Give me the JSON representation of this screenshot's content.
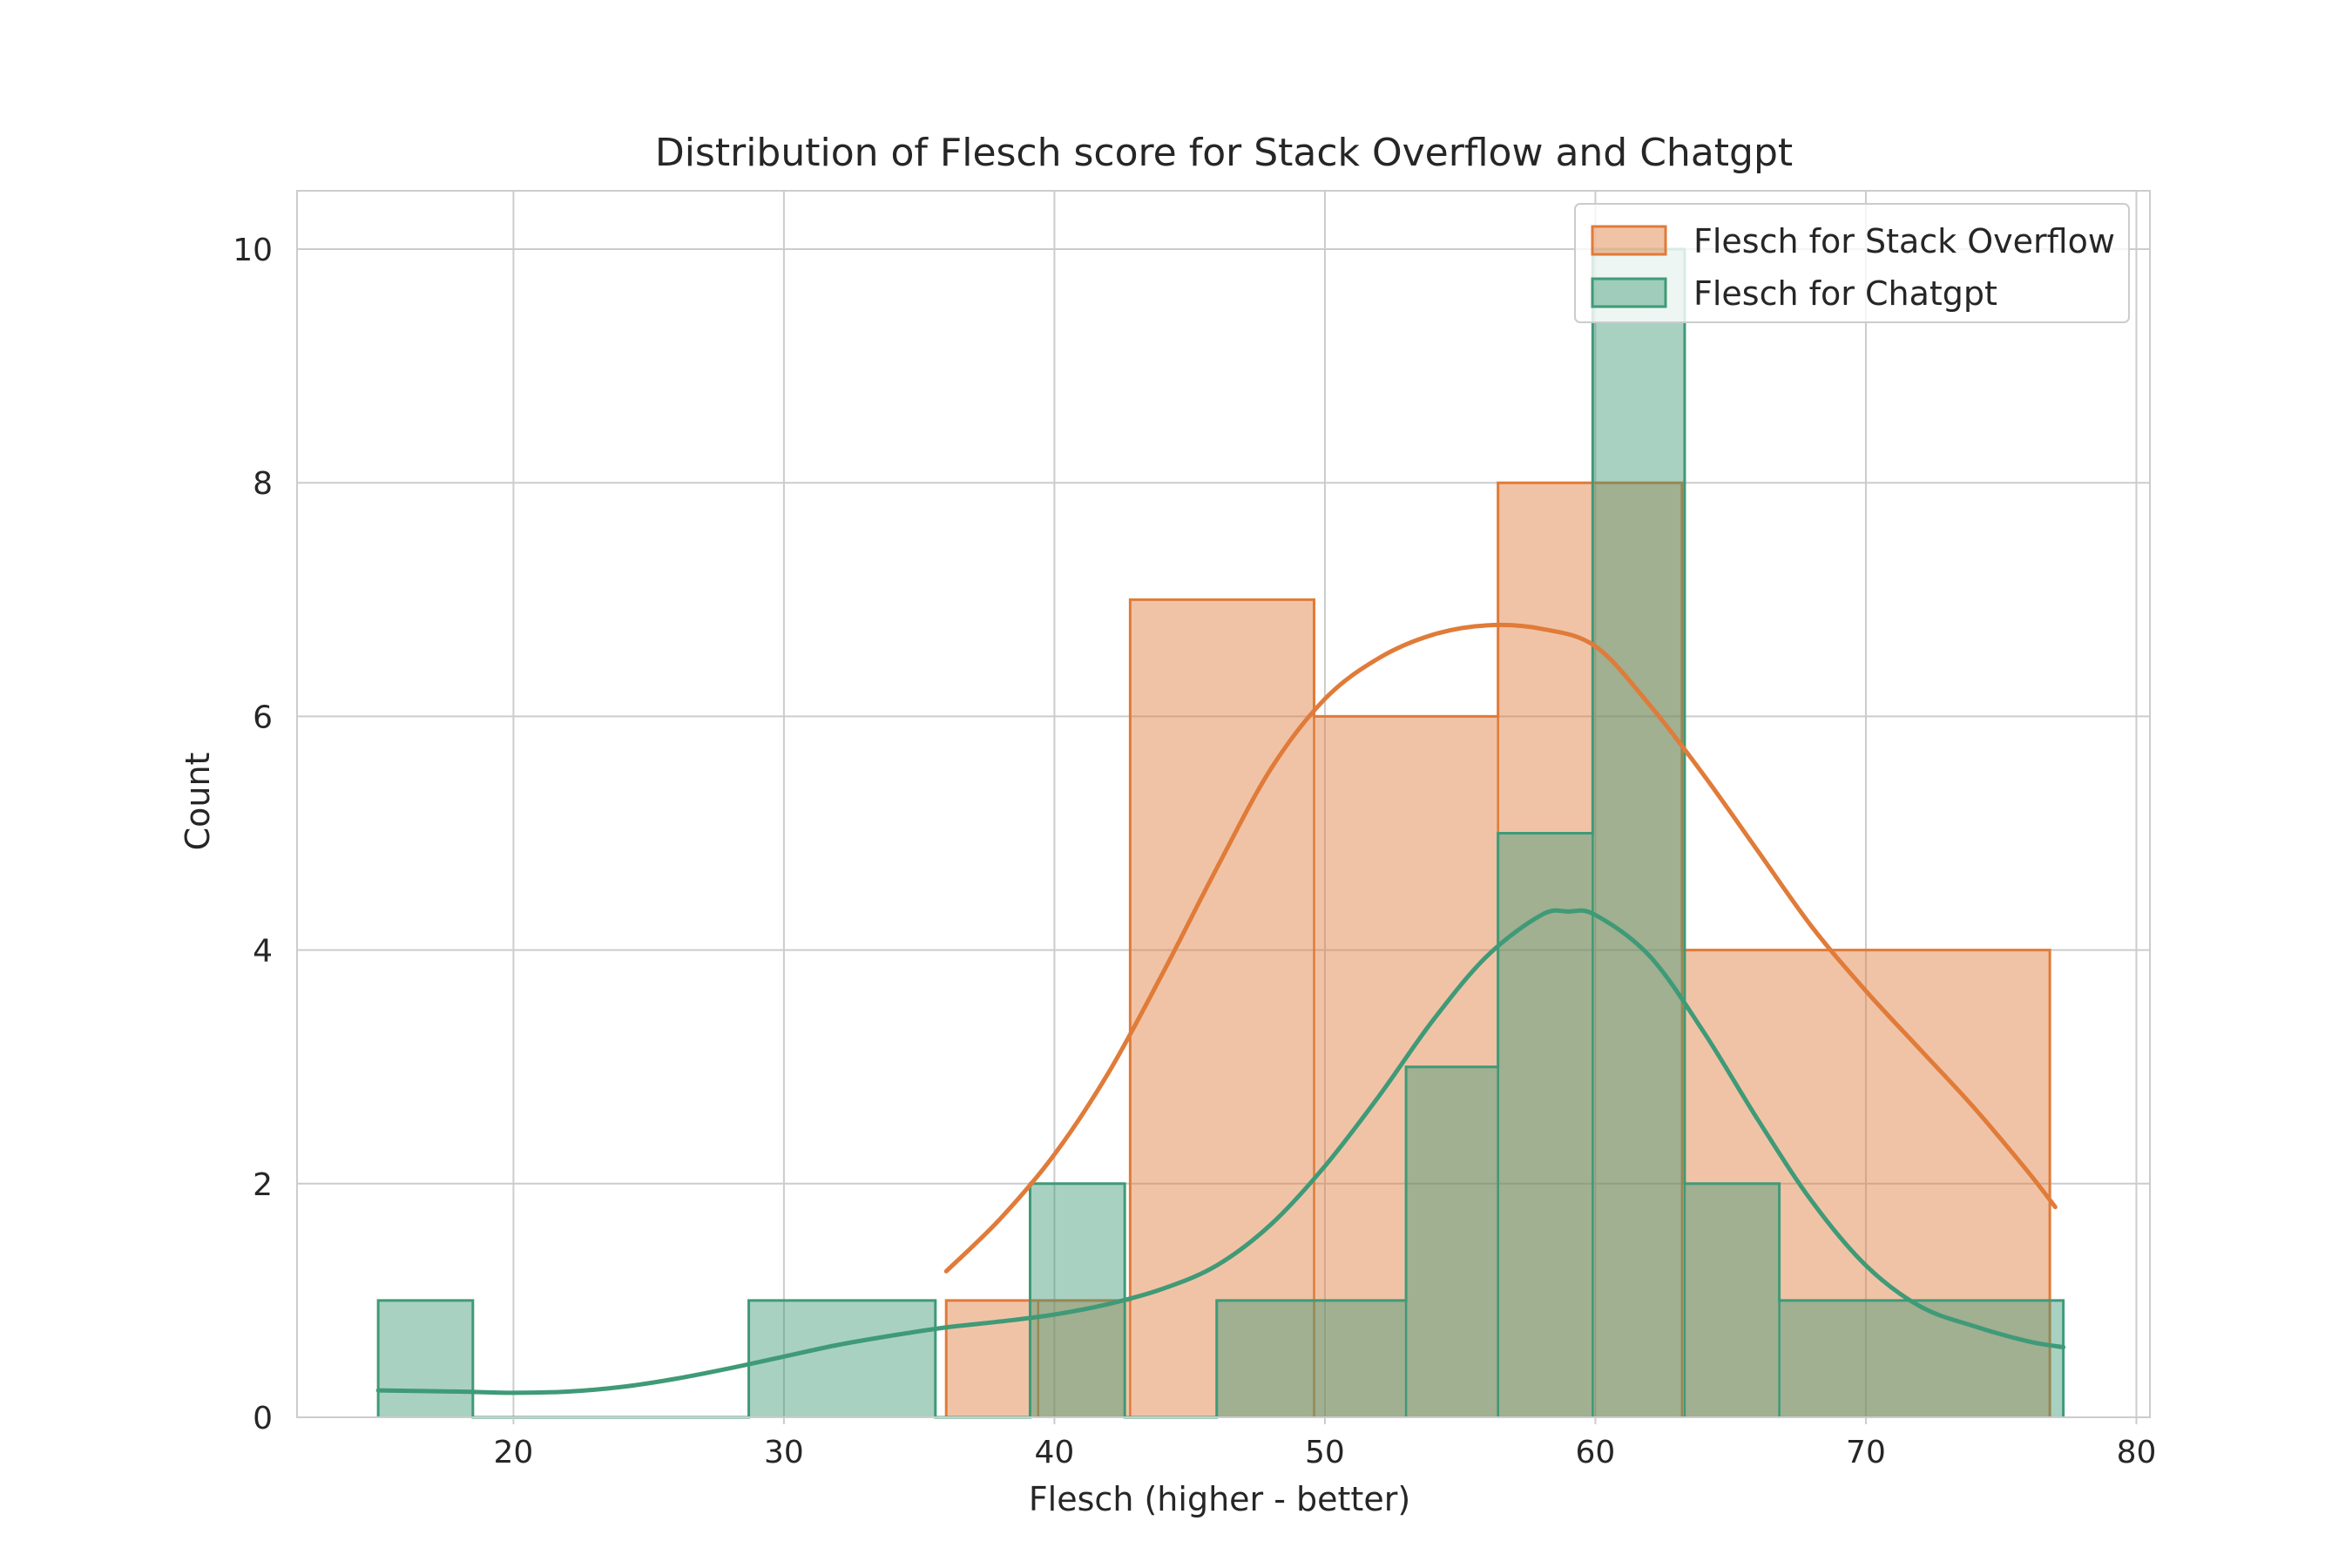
{
  "chart_data": {
    "type": "histogram",
    "title": "Distribution of Flesch score for Stack Overflow and Chatgpt",
    "xlabel": "Flesch (higher - better)",
    "ylabel": "Count",
    "xlim": [
      12,
      80.5
    ],
    "ylim": [
      0,
      10.5
    ],
    "xticks": [
      20,
      30,
      40,
      50,
      60,
      70,
      80
    ],
    "yticks": [
      0,
      2,
      4,
      6,
      8,
      10
    ],
    "grid": true,
    "legend_position": "top-right",
    "series": [
      {
        "name": "Flesch for Stack Overflow",
        "color": "#e07b39",
        "bins": [
          {
            "x0": 36.0,
            "x1": 39.4,
            "count": 1
          },
          {
            "x0": 39.4,
            "x1": 42.8,
            "count": 1
          },
          {
            "x0": 42.8,
            "x1": 49.6,
            "count": 7
          },
          {
            "x0": 49.6,
            "x1": 56.4,
            "count": 6
          },
          {
            "x0": 56.4,
            "x1": 63.2,
            "count": 8
          },
          {
            "x0": 63.2,
            "x1": 76.8,
            "count": 4
          }
        ],
        "kde": [
          [
            36.0,
            1.25
          ],
          [
            38.0,
            1.7
          ],
          [
            40.0,
            2.25
          ],
          [
            42.0,
            2.95
          ],
          [
            44.0,
            3.8
          ],
          [
            46.0,
            4.7
          ],
          [
            48.0,
            5.55
          ],
          [
            50.0,
            6.15
          ],
          [
            52.0,
            6.5
          ],
          [
            54.0,
            6.7
          ],
          [
            56.0,
            6.78
          ],
          [
            58.0,
            6.75
          ],
          [
            60.0,
            6.6
          ],
          [
            62.0,
            6.1
          ],
          [
            64.0,
            5.5
          ],
          [
            66.0,
            4.85
          ],
          [
            68.0,
            4.2
          ],
          [
            70.0,
            3.65
          ],
          [
            72.0,
            3.15
          ],
          [
            74.0,
            2.65
          ],
          [
            76.0,
            2.1
          ],
          [
            77.0,
            1.8
          ]
        ]
      },
      {
        "name": "Flesch for Chatgpt",
        "color": "#3f9a77",
        "bins": [
          {
            "x0": 15.0,
            "x1": 18.5,
            "count": 1
          },
          {
            "x0": 18.5,
            "x1": 28.7,
            "count": 0
          },
          {
            "x0": 28.7,
            "x1": 35.6,
            "count": 1
          },
          {
            "x0": 35.6,
            "x1": 39.1,
            "count": 0
          },
          {
            "x0": 39.1,
            "x1": 42.6,
            "count": 2
          },
          {
            "x0": 42.6,
            "x1": 46.0,
            "count": 0
          },
          {
            "x0": 46.0,
            "x1": 53.0,
            "count": 1
          },
          {
            "x0": 53.0,
            "x1": 56.4,
            "count": 3
          },
          {
            "x0": 56.4,
            "x1": 59.9,
            "count": 5
          },
          {
            "x0": 59.9,
            "x1": 63.3,
            "count": 10
          },
          {
            "x0": 63.3,
            "x1": 66.8,
            "count": 2
          },
          {
            "x0": 66.8,
            "x1": 77.3,
            "count": 1
          }
        ],
        "kde": [
          [
            15.0,
            0.23
          ],
          [
            18.0,
            0.22
          ],
          [
            20.0,
            0.21
          ],
          [
            22.0,
            0.22
          ],
          [
            24.0,
            0.26
          ],
          [
            26.0,
            0.33
          ],
          [
            28.0,
            0.42
          ],
          [
            30.0,
            0.52
          ],
          [
            32.0,
            0.62
          ],
          [
            34.0,
            0.7
          ],
          [
            36.0,
            0.77
          ],
          [
            38.0,
            0.82
          ],
          [
            40.0,
            0.88
          ],
          [
            42.0,
            0.97
          ],
          [
            44.0,
            1.1
          ],
          [
            46.0,
            1.3
          ],
          [
            48.0,
            1.65
          ],
          [
            50.0,
            2.15
          ],
          [
            52.0,
            2.75
          ],
          [
            54.0,
            3.4
          ],
          [
            56.0,
            3.95
          ],
          [
            58.0,
            4.3
          ],
          [
            59.0,
            4.33
          ],
          [
            60.0,
            4.3
          ],
          [
            62.0,
            3.95
          ],
          [
            64.0,
            3.3
          ],
          [
            66.0,
            2.55
          ],
          [
            68.0,
            1.85
          ],
          [
            70.0,
            1.3
          ],
          [
            72.0,
            0.95
          ],
          [
            74.0,
            0.78
          ],
          [
            76.0,
            0.65
          ],
          [
            77.3,
            0.6
          ]
        ]
      }
    ]
  }
}
